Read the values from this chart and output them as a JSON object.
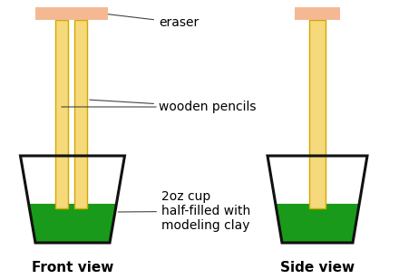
{
  "bg_color": "#ffffff",
  "pencil_color": "#f5d97a",
  "pencil_outline": "#d4a800",
  "eraser_color": "#f4b993",
  "cup_outline": "#111111",
  "clay_color": "#1a9a1a",
  "cup_fill": "#ffffff",
  "label_eraser": "eraser",
  "label_pencils": "wooden pencils",
  "label_cup_line1": "2oz cup",
  "label_cup_line2": "half-filled with",
  "label_cup_line3": "modeling clay",
  "label_front": "Front view",
  "label_side": "Side view",
  "font_size_label": 10,
  "font_size_view": 11
}
